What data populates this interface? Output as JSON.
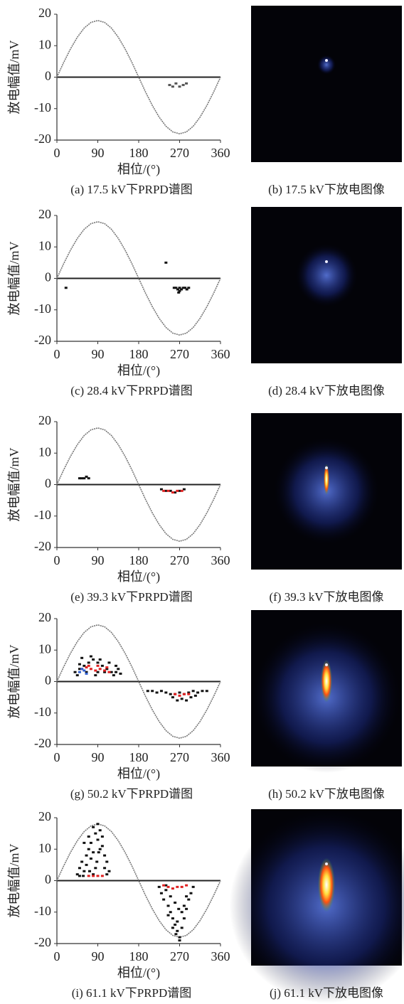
{
  "chart_data": [
    {
      "type": "scatter",
      "caption": "(a) 17.5 kV下PRPD谱图",
      "xlabel": "相位/(°)",
      "ylabel": "放电幅值/mV",
      "xlim": [
        0,
        360
      ],
      "ylim": [
        -20,
        20
      ],
      "xticks": [
        0,
        90,
        180,
        270,
        360
      ],
      "yticks": [
        -20,
        -10,
        0,
        10,
        20
      ],
      "series": [
        {
          "type": "line",
          "color": "#777777",
          "x": [
            0,
            15,
            30,
            45,
            60,
            75,
            90,
            105,
            120,
            135,
            150,
            165,
            180,
            195,
            210,
            225,
            240,
            255,
            270,
            285,
            300,
            315,
            330,
            345,
            360
          ],
          "values": [
            0,
            4.7,
            9,
            12.7,
            15.6,
            17.4,
            18,
            17.4,
            15.6,
            12.7,
            9,
            4.7,
            0,
            -4.7,
            -9,
            -12.7,
            -15.6,
            -17.4,
            -18,
            -17.4,
            -15.6,
            -12.7,
            -9,
            -4.7,
            0
          ]
        },
        {
          "color": "#555555",
          "x": [
            248,
            255,
            262,
            270,
            278,
            285
          ],
          "values": [
            -2.5,
            -3,
            -2,
            -3,
            -2.5,
            -2
          ]
        }
      ]
    },
    {
      "type": "scatter",
      "caption": "(c) 28.4 kV下PRPD谱图",
      "xlabel": "相位/(°)",
      "ylabel": "放电幅值/mV",
      "xlim": [
        0,
        360
      ],
      "ylim": [
        -20,
        20
      ],
      "xticks": [
        0,
        90,
        180,
        270,
        360
      ],
      "yticks": [
        -20,
        -10,
        0,
        10,
        20
      ],
      "series": [
        {
          "type": "line",
          "color": "#777777",
          "x": [
            0,
            15,
            30,
            45,
            60,
            75,
            90,
            105,
            120,
            135,
            150,
            165,
            180,
            195,
            210,
            225,
            240,
            255,
            270,
            285,
            300,
            315,
            330,
            345,
            360
          ],
          "values": [
            0,
            4.7,
            9,
            12.7,
            15.6,
            17.4,
            18,
            17.4,
            15.6,
            12.7,
            9,
            4.7,
            0,
            -4.7,
            -9,
            -12.7,
            -15.6,
            -17.4,
            -18,
            -17.4,
            -15.6,
            -12.7,
            -9,
            -4.7,
            0
          ]
        },
        {
          "color": "#111111",
          "x": [
            20,
            240,
            262,
            266,
            270,
            274,
            278,
            282,
            286,
            270,
            268,
            258,
            290
          ],
          "values": [
            -3,
            5,
            -3,
            -3.5,
            -3,
            -3.5,
            -3,
            -3,
            -3.5,
            -4,
            -4.5,
            -3,
            -3
          ]
        }
      ]
    },
    {
      "type": "scatter",
      "caption": "(e) 39.3 kV下PRPD谱图",
      "xlabel": "相位/(°)",
      "ylabel": "放电幅值/mV",
      "xlim": [
        0,
        360
      ],
      "ylim": [
        -20,
        20
      ],
      "xticks": [
        0,
        90,
        180,
        270,
        360
      ],
      "yticks": [
        -20,
        -10,
        0,
        10,
        20
      ],
      "series": [
        {
          "type": "line",
          "color": "#777777",
          "x": [
            0,
            15,
            30,
            45,
            60,
            75,
            90,
            105,
            120,
            135,
            150,
            165,
            180,
            195,
            210,
            225,
            240,
            255,
            270,
            285,
            300,
            315,
            330,
            345,
            360
          ],
          "values": [
            0,
            4.7,
            9,
            12.7,
            15.6,
            17.4,
            18,
            17.4,
            15.6,
            12.7,
            9,
            4.7,
            0,
            -4.7,
            -9,
            -12.7,
            -15.6,
            -17.4,
            -18,
            -17.4,
            -15.6,
            -12.7,
            -9,
            -4.7,
            0
          ]
        },
        {
          "color": "#111111",
          "x": [
            50,
            55,
            60,
            65,
            70,
            230,
            240,
            250,
            260,
            270,
            280
          ],
          "values": [
            2,
            2,
            2,
            2.5,
            2,
            -1.5,
            -2,
            -2,
            -2.5,
            -2,
            -1.5
          ]
        },
        {
          "color": "#e02020",
          "x": [
            235,
            245,
            255,
            265,
            275
          ],
          "values": [
            -2,
            -2,
            -2.5,
            -2,
            -2
          ]
        }
      ]
    },
    {
      "type": "scatter",
      "caption": "(g) 50.2 kV下PRPD谱图",
      "xlabel": "相位/(°)",
      "ylabel": "放电幅值/mV",
      "xlim": [
        0,
        360
      ],
      "ylim": [
        -20,
        20
      ],
      "xticks": [
        0,
        90,
        180,
        270,
        360
      ],
      "yticks": [
        -20,
        -10,
        0,
        10,
        20
      ],
      "series": [
        {
          "type": "line",
          "color": "#777777",
          "x": [
            0,
            15,
            30,
            45,
            60,
            75,
            90,
            105,
            120,
            135,
            150,
            165,
            180,
            195,
            210,
            225,
            240,
            255,
            270,
            285,
            300,
            315,
            330,
            345,
            360
          ],
          "values": [
            0,
            4.7,
            9,
            12.7,
            15.6,
            17.4,
            18,
            17.4,
            15.6,
            12.7,
            9,
            4.7,
            0,
            -4.7,
            -9,
            -12.7,
            -15.6,
            -17.4,
            -18,
            -17.4,
            -15.6,
            -12.7,
            -9,
            -4.7,
            0
          ]
        },
        {
          "color": "#111111",
          "x": [
            40,
            50,
            60,
            70,
            80,
            90,
            100,
            110,
            120,
            130,
            140,
            45,
            65,
            85,
            105,
            125,
            55,
            75,
            95,
            115,
            135,
            50,
            90,
            130,
            200,
            210,
            220,
            230,
            240,
            250,
            260,
            270,
            280,
            290,
            300,
            310,
            320,
            330,
            255,
            265,
            275,
            285,
            295,
            305
          ],
          "values": [
            3,
            4,
            5,
            6,
            7,
            6,
            5,
            4,
            3,
            3,
            2.5,
            2,
            3,
            2,
            3,
            2,
            7.5,
            8,
            7,
            6,
            4,
            5.5,
            3,
            5,
            -3,
            -3,
            -3.5,
            -3,
            -3.5,
            -4,
            -4,
            -3.5,
            -4,
            -3.5,
            -3,
            -3.5,
            -3,
            -3,
            -5,
            -6,
            -5.5,
            -6,
            -5,
            -4.5
          ]
        },
        {
          "color": "#e02020",
          "x": [
            55,
            65,
            75,
            85,
            95,
            105,
            115,
            70,
            90,
            110,
            260,
            270,
            280,
            290
          ],
          "values": [
            4,
            4.5,
            4,
            3.5,
            4,
            3.5,
            3,
            5,
            5,
            4.5,
            -4,
            -4.5,
            -4,
            -4
          ]
        },
        {
          "color": "#3060d0",
          "x": [
            50,
            55,
            60,
            65
          ],
          "values": [
            3,
            4,
            3.5,
            2.5
          ]
        }
      ]
    },
    {
      "type": "scatter",
      "caption": "(i) 61.1 kV下PRPD谱图",
      "xlabel": "相位/(°)",
      "ylabel": "放电幅值/mV",
      "xlim": [
        0,
        360
      ],
      "ylim": [
        -20,
        20
      ],
      "xticks": [
        0,
        90,
        180,
        270,
        360
      ],
      "yticks": [
        -20,
        -10,
        0,
        10,
        20
      ],
      "series": [
        {
          "type": "line",
          "color": "#777777",
          "x": [
            0,
            15,
            30,
            45,
            60,
            75,
            90,
            105,
            120,
            135,
            150,
            165,
            180,
            195,
            210,
            225,
            240,
            255,
            270,
            285,
            300,
            315,
            330,
            345,
            360
          ],
          "values": [
            0,
            4.7,
            9,
            12.7,
            15.6,
            17.4,
            18,
            17.4,
            15.6,
            12.7,
            9,
            4.7,
            0,
            -4.7,
            -9,
            -12.7,
            -15.6,
            -17.4,
            -18,
            -17.4,
            -15.6,
            -12.7,
            -9,
            -4.7,
            0
          ]
        },
        {
          "color": "#111111",
          "x": [
            45,
            50,
            55,
            60,
            65,
            70,
            75,
            80,
            85,
            90,
            95,
            100,
            105,
            110,
            115,
            60,
            70,
            80,
            90,
            100,
            65,
            75,
            85,
            95,
            80,
            88,
            92,
            72,
            58,
            105,
            110,
            50,
            225,
            230,
            235,
            240,
            245,
            250,
            255,
            260,
            265,
            270,
            275,
            280,
            285,
            290,
            295,
            300,
            250,
            260,
            270,
            280,
            245,
            265,
            275,
            255,
            285,
            262,
            268,
            240
          ],
          "values": [
            2,
            4,
            6,
            3,
            8,
            10,
            12,
            9,
            15,
            13,
            16,
            11,
            8,
            6,
            3,
            12,
            14,
            17,
            18,
            14,
            5,
            7,
            4,
            10,
            2,
            6,
            9,
            3,
            1.5,
            4,
            2,
            1.5,
            -2,
            -4,
            -6,
            -3,
            -8,
            -10,
            -12,
            -14,
            -16,
            -18,
            -15,
            -12,
            -9,
            -6,
            -4,
            -2,
            -5,
            -7,
            -19,
            -8,
            -11,
            -13,
            -10,
            -15,
            -5,
            -17,
            -9,
            -1.5
          ]
        },
        {
          "color": "#e02020",
          "x": [
            70,
            80,
            90,
            100,
            235,
            245,
            255,
            265,
            275,
            285
          ],
          "values": [
            1.5,
            1.5,
            1.5,
            1.5,
            -1.5,
            -2,
            -2.5,
            -2,
            -2,
            -1.5
          ]
        }
      ]
    }
  ],
  "image_panels": [
    {
      "caption": "(b) 17.5 kV下放电图像"
    },
    {
      "caption": "(d) 28.4 kV下放电图像"
    },
    {
      "caption": "(f) 39.3 kV下放电图像"
    },
    {
      "caption": "(h) 50.2 kV下放电图像"
    },
    {
      "caption": "(j) 61.1 kV下放电图像"
    }
  ]
}
